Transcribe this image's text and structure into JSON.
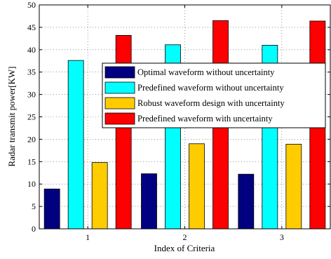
{
  "chart_data": {
    "type": "bar",
    "title": "",
    "xlabel": "Index of Criteria",
    "ylabel": "Radar transmit power[KW]",
    "categories": [
      "1",
      "2",
      "3"
    ],
    "ylim": [
      0,
      50
    ],
    "yticks": [
      0,
      5,
      10,
      15,
      20,
      25,
      30,
      35,
      40,
      45,
      50
    ],
    "grid": true,
    "legend_position": "center-right",
    "series": [
      {
        "name": "Optimal waveform without uncertainty",
        "color": "#000080",
        "values": [
          8.9,
          12.3,
          12.2
        ]
      },
      {
        "name": "Predefined waveform without uncertainty",
        "color": "#00ffff",
        "values": [
          37.6,
          41.1,
          41.0
        ]
      },
      {
        "name": "Robust waveform design with uncertainty",
        "color": "#ffcc00",
        "values": [
          14.8,
          19.0,
          18.9
        ]
      },
      {
        "name": "Predefined waveform with uncertainty",
        "color": "#ff0000",
        "values": [
          43.2,
          46.5,
          46.4
        ]
      }
    ]
  }
}
